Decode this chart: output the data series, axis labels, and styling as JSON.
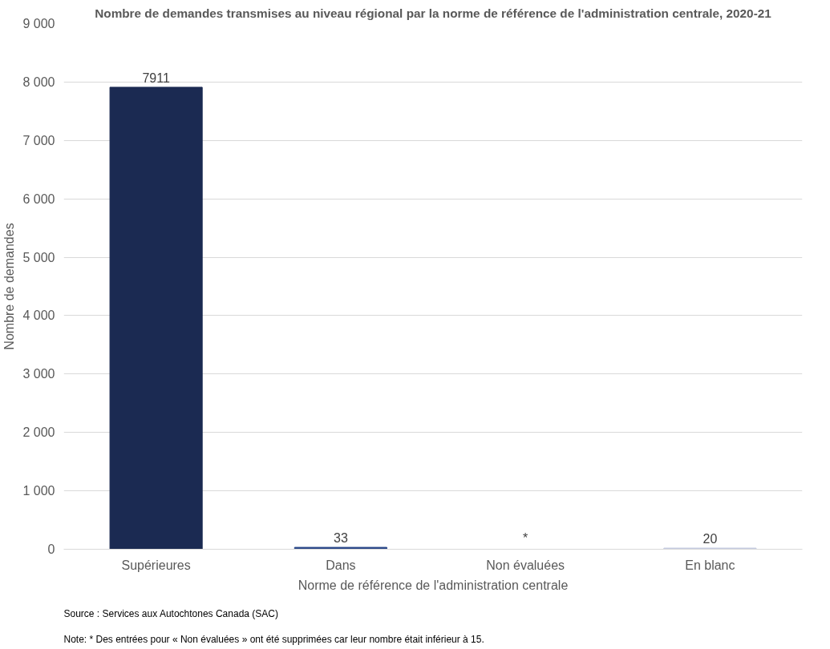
{
  "chart_data": {
    "type": "bar",
    "title": "Nombre de demandes transmises au niveau régional par la norme de référence de l'administration centrale, 2020-21",
    "xlabel": "Norme de référence de l'administration centrale",
    "ylabel": "Nombre de demandes",
    "categories": [
      "Supérieures",
      "Dans",
      "Non évaluées",
      "En blanc"
    ],
    "values": [
      7911,
      33,
      null,
      20
    ],
    "colors": [
      "#1b2a52",
      "#2e4a8a",
      "#1b2a52",
      "#c5cbe0"
    ],
    "value_labels": [
      "7911",
      "33",
      "*",
      "20"
    ],
    "ylim": [
      0,
      9000
    ],
    "yticks": [
      {
        "value": 0,
        "label": "0"
      },
      {
        "value": 1000,
        "label": "1 000"
      },
      {
        "value": 2000,
        "label": "2 000"
      },
      {
        "value": 3000,
        "label": "3 000"
      },
      {
        "value": 4000,
        "label": "4 000"
      },
      {
        "value": 5000,
        "label": "5 000"
      },
      {
        "value": 6000,
        "label": "6 000"
      },
      {
        "value": 7000,
        "label": "7 000"
      },
      {
        "value": 8000,
        "label": "8 000"
      },
      {
        "value": 9000,
        "label": "9 000"
      }
    ],
    "grid": "y",
    "annotations": [
      "Source : Services aux Autochtones Canada (SAC)",
      "Note: * Des entrées pour « Non évaluées » ont été supprimées car leur nombre était inférieur à 15."
    ]
  }
}
